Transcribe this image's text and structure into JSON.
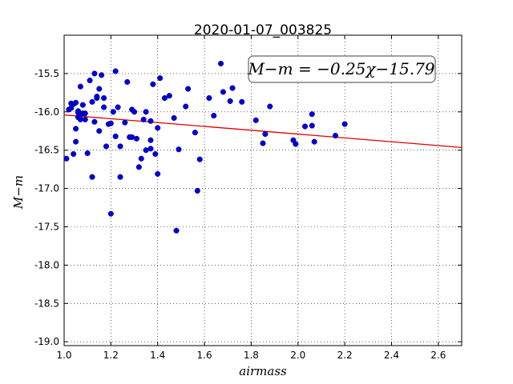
{
  "chart_data": {
    "type": "scatter",
    "title": "2020-01-07_003825",
    "xlabel": "airmass",
    "ylabel": "M−m",
    "xlim": [
      1.0,
      2.7
    ],
    "ylim": [
      -19.05,
      -15.0
    ],
    "y_inverted": false,
    "grid": true,
    "x_ticks": [
      "1.0",
      "1.2",
      "1.4",
      "1.6",
      "1.8",
      "2.0",
      "2.2",
      "2.4",
      "2.6"
    ],
    "y_ticks": [
      "-15.5",
      "-16.0",
      "-16.5",
      "-17.0",
      "-17.5",
      "-18.0",
      "-18.5",
      "-19.0"
    ],
    "annotation": "M−m = −0.25χ−15.79",
    "fit": {
      "slope": -0.25,
      "intercept": -15.79
    },
    "colors": {
      "points": "#0000cc",
      "fit": "#dd0000"
    },
    "points": [
      [
        1.01,
        -16.61
      ],
      [
        1.02,
        -15.97
      ],
      [
        1.03,
        -15.89
      ],
      [
        1.03,
        -15.95
      ],
      [
        1.04,
        -16.55
      ],
      [
        1.04,
        -15.9
      ],
      [
        1.05,
        -16.22
      ],
      [
        1.05,
        -16.39
      ],
      [
        1.05,
        -15.88
      ],
      [
        1.06,
        -16.07
      ],
      [
        1.06,
        -16.01
      ],
      [
        1.06,
        -15.99
      ],
      [
        1.07,
        -16.1
      ],
      [
        1.07,
        -16.04
      ],
      [
        1.07,
        -16.04
      ],
      [
        1.07,
        -15.67
      ],
      [
        1.08,
        -15.91
      ],
      [
        1.08,
        -16.02
      ],
      [
        1.09,
        -16.1
      ],
      [
        1.09,
        -16.02
      ],
      [
        1.1,
        -16.54
      ],
      [
        1.11,
        -15.59
      ],
      [
        1.12,
        -15.87
      ],
      [
        1.12,
        -16.85
      ],
      [
        1.13,
        -15.5
      ],
      [
        1.13,
        -16.13
      ],
      [
        1.14,
        -15.82
      ],
      [
        1.14,
        -15.8
      ],
      [
        1.15,
        -15.7
      ],
      [
        1.15,
        -16.25
      ],
      [
        1.16,
        -15.52
      ],
      [
        1.17,
        -15.94
      ],
      [
        1.17,
        -15.82
      ],
      [
        1.18,
        -16.45
      ],
      [
        1.19,
        -16.16
      ],
      [
        1.2,
        -16.15
      ],
      [
        1.2,
        -17.33
      ],
      [
        1.21,
        -16.0
      ],
      [
        1.22,
        -15.47
      ],
      [
        1.22,
        -16.32
      ],
      [
        1.23,
        -15.94
      ],
      [
        1.24,
        -16.85
      ],
      [
        1.24,
        -16.45
      ],
      [
        1.26,
        -16.14
      ],
      [
        1.27,
        -15.61
      ],
      [
        1.28,
        -16.33
      ],
      [
        1.29,
        -15.97
      ],
      [
        1.29,
        -16.33
      ],
      [
        1.3,
        -16.0
      ],
      [
        1.31,
        -16.35
      ],
      [
        1.32,
        -16.72
      ],
      [
        1.33,
        -16.61
      ],
      [
        1.34,
        -16.1
      ],
      [
        1.35,
        -16.0
      ],
      [
        1.35,
        -16.5
      ],
      [
        1.37,
        -16.12
      ],
      [
        1.37,
        -16.37
      ],
      [
        1.37,
        -16.48
      ],
      [
        1.38,
        -15.64
      ],
      [
        1.39,
        -16.55
      ],
      [
        1.4,
        -16.21
      ],
      [
        1.4,
        -16.81
      ],
      [
        1.41,
        -15.56
      ],
      [
        1.43,
        -15.82
      ],
      [
        1.45,
        -15.79
      ],
      [
        1.47,
        -16.08
      ],
      [
        1.48,
        -17.55
      ],
      [
        1.49,
        -16.49
      ],
      [
        1.52,
        -15.93
      ],
      [
        1.53,
        -15.7
      ],
      [
        1.56,
        -16.27
      ],
      [
        1.57,
        -17.03
      ],
      [
        1.58,
        -16.62
      ],
      [
        1.62,
        -15.82
      ],
      [
        1.64,
        -16.05
      ],
      [
        1.67,
        -15.37
      ],
      [
        1.68,
        -15.74
      ],
      [
        1.71,
        -15.86
      ],
      [
        1.72,
        -15.69
      ],
      [
        1.76,
        -15.87
      ],
      [
        1.82,
        -16.11
      ],
      [
        1.85,
        -16.41
      ],
      [
        1.86,
        -16.29
      ],
      [
        1.88,
        -15.93
      ],
      [
        1.98,
        -16.37
      ],
      [
        1.99,
        -16.42
      ],
      [
        2.03,
        -16.19
      ],
      [
        2.06,
        -16.18
      ],
      [
        2.06,
        -16.03
      ],
      [
        2.07,
        -16.39
      ],
      [
        2.16,
        -16.31
      ],
      [
        2.2,
        -16.16
      ]
    ]
  }
}
